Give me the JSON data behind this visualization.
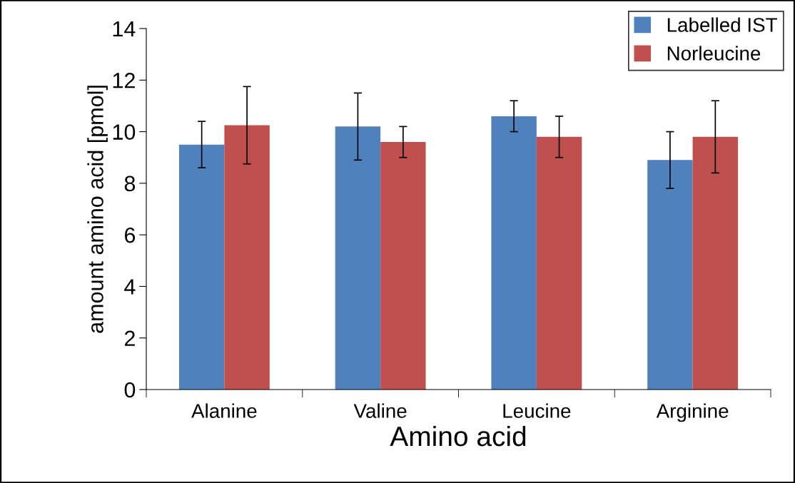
{
  "chart_data": {
    "type": "bar",
    "xlabel": "Amino acid",
    "ylabel": "amount amino acid [pmol]",
    "categories": [
      "Alanine",
      "Valine",
      "Leucine",
      "Arginine"
    ],
    "series": [
      {
        "name": "Labelled IST",
        "color": "#4f81bd",
        "values": [
          9.5,
          10.2,
          10.6,
          8.9
        ],
        "errors": [
          0.9,
          1.3,
          0.6,
          1.1
        ]
      },
      {
        "name": "Norleucine",
        "color": "#c0504d",
        "values": [
          10.25,
          9.6,
          9.8,
          9.8
        ],
        "errors": [
          1.5,
          0.6,
          0.8,
          1.4
        ]
      }
    ],
    "ylim": [
      0,
      14
    ],
    "yticks": [
      0,
      2,
      4,
      6,
      8,
      10,
      12,
      14
    ],
    "grid": false,
    "legend": "top right"
  }
}
